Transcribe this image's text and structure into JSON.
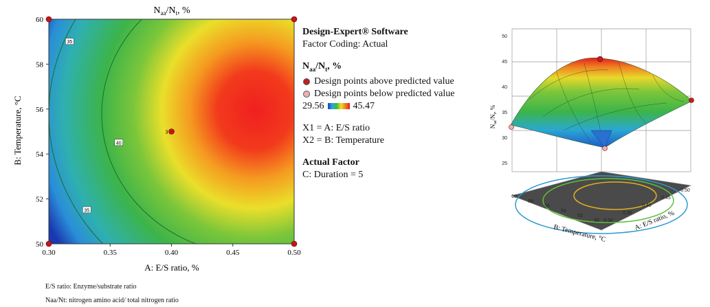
{
  "chart_data": [
    {
      "type": "contour",
      "title": "N_aa/N_t, %",
      "xlabel": "A: E/S ratio, %",
      "ylabel": "B: Temperature, °C",
      "xlim": [
        0.3,
        0.5
      ],
      "ylim": [
        50,
        60
      ],
      "xticks": [
        "0.30",
        "0.35",
        "0.40",
        "0.45",
        "0.50"
      ],
      "yticks": [
        "50",
        "52",
        "54",
        "56",
        "58",
        "60"
      ],
      "contour_labels": [
        {
          "text": "35",
          "x": 0.317,
          "y": 59.0
        },
        {
          "text": "40",
          "x": 0.357,
          "y": 54.5
        },
        {
          "text": "35",
          "x": 0.331,
          "y": 51.5
        }
      ],
      "design_points": [
        {
          "x": 0.3,
          "y": 60,
          "label": ""
        },
        {
          "x": 0.5,
          "y": 60,
          "label": ""
        },
        {
          "x": 0.3,
          "y": 50,
          "label": ""
        },
        {
          "x": 0.5,
          "y": 50,
          "label": ""
        },
        {
          "x": 0.4,
          "y": 55,
          "label": "3"
        }
      ],
      "range": [
        29.56,
        45.47
      ],
      "peak": {
        "x": 0.45,
        "y": 56
      }
    },
    {
      "type": "surface",
      "zlabel": "N_aa/N_t, %",
      "xlabel": "A: E/S ratio, %",
      "ylabel": "B: Temperature, °C",
      "zticks": [
        "25",
        "30",
        "35",
        "40",
        "45",
        "50"
      ],
      "xticks": [
        "0.30",
        "0.35",
        "0.40",
        "0.45",
        "0.50"
      ],
      "yticks": [
        "50",
        "52",
        "54",
        "56",
        "58",
        "60"
      ]
    }
  ],
  "legend": {
    "software": "Design-Expert® Software",
    "coding": "Factor Coding: Actual",
    "response": "N",
    "response_sub1": "aa",
    "response_mid": "/N",
    "response_sub2": "t",
    "response_end": ", %",
    "above": "Design points above predicted value",
    "below": "Design points below predicted value",
    "range_low": "29.56",
    "range_high": "45.47",
    "x1": "X1 = A: E/S ratio",
    "x2": "X2 = B: Temperature",
    "actual_factor_title": "Actual Factor",
    "actual_factor": "C: Duration = 5"
  },
  "footnotes": {
    "es": "E/S ratio: Enzyme/substrate ratio",
    "naa": "Naa/Nt: nitrogen amino acid/ total nitrogen ratio"
  }
}
